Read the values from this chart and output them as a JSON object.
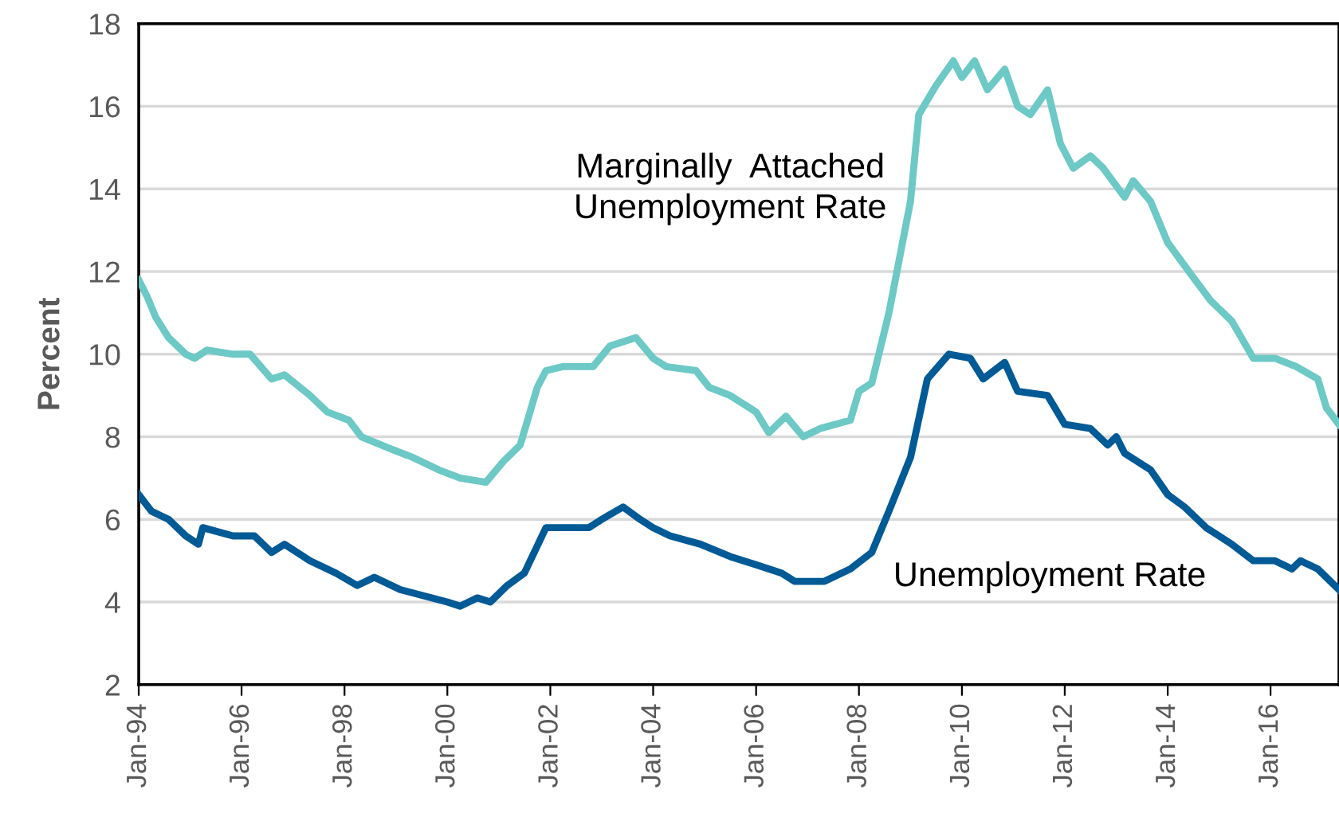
{
  "chart_data": {
    "type": "line",
    "ylabel": "Percent",
    "xlim": [
      "1994-01",
      "2017-05"
    ],
    "ylim": [
      2,
      18
    ],
    "yticks": [
      2,
      4,
      6,
      8,
      10,
      12,
      14,
      16,
      18
    ],
    "xticks": [
      {
        "value": "1994-01",
        "label": "Jan-94"
      },
      {
        "value": "1996-01",
        "label": "Jan-96"
      },
      {
        "value": "1998-01",
        "label": "Jan-98"
      },
      {
        "value": "2000-01",
        "label": "Jan-00"
      },
      {
        "value": "2002-01",
        "label": "Jan-02"
      },
      {
        "value": "2004-01",
        "label": "Jan-04"
      },
      {
        "value": "2006-01",
        "label": "Jan-06"
      },
      {
        "value": "2008-01",
        "label": "Jan-08"
      },
      {
        "value": "2010-01",
        "label": "Jan-10"
      },
      {
        "value": "2012-01",
        "label": "Jan-12"
      },
      {
        "value": "2014-01",
        "label": "Jan-14"
      },
      {
        "value": "2016-01",
        "label": "Jan-16"
      }
    ],
    "grid": "y",
    "legend": false,
    "line_style": "solid",
    "marker": "none",
    "series": [
      {
        "name": "Marginally  Attached\nUnemployment Rate",
        "color": "#6cc9c5",
        "x": [
          "1994-01",
          "1994-03",
          "1994-05",
          "1994-08",
          "1994-12",
          "1995-02",
          "1995-05",
          "1995-11",
          "1996-03",
          "1996-08",
          "1996-11",
          "1997-05",
          "1997-09",
          "1998-02",
          "1998-05",
          "1998-12",
          "1999-05",
          "1999-11",
          "2000-04",
          "2000-10",
          "2001-02",
          "2001-06",
          "2001-10",
          "2001-12",
          "2002-04",
          "2002-11",
          "2003-03",
          "2003-09",
          "2004-01",
          "2004-04",
          "2004-11",
          "2005-02",
          "2005-07",
          "2006-01",
          "2006-04",
          "2006-08",
          "2006-12",
          "2007-04",
          "2007-11",
          "2008-01",
          "2008-04",
          "2008-08",
          "2009-01",
          "2009-03",
          "2009-07",
          "2009-11",
          "2010-01",
          "2010-04",
          "2010-07",
          "2010-11",
          "2011-02",
          "2011-05",
          "2011-09",
          "2011-12",
          "2012-03",
          "2012-07",
          "2012-10",
          "2013-03",
          "2013-05",
          "2013-09",
          "2014-01",
          "2014-06",
          "2014-11",
          "2015-04",
          "2015-09",
          "2016-02",
          "2016-07",
          "2016-12",
          "2017-02",
          "2017-05"
        ],
        "values": [
          11.8,
          11.4,
          10.9,
          10.4,
          10.0,
          9.9,
          10.1,
          10.0,
          10.0,
          9.4,
          9.5,
          9.0,
          8.6,
          8.4,
          8.0,
          7.7,
          7.5,
          7.2,
          7.0,
          6.9,
          7.4,
          7.8,
          9.2,
          9.6,
          9.7,
          9.7,
          10.2,
          10.4,
          9.9,
          9.7,
          9.6,
          9.2,
          9.0,
          8.6,
          8.1,
          8.5,
          8.0,
          8.2,
          8.4,
          9.1,
          9.3,
          11.0,
          13.7,
          15.8,
          16.5,
          17.1,
          16.7,
          17.1,
          16.4,
          16.9,
          16.0,
          15.8,
          16.4,
          15.1,
          14.5,
          14.8,
          14.5,
          13.8,
          14.2,
          13.7,
          12.7,
          12.0,
          11.3,
          10.8,
          9.9,
          9.9,
          9.7,
          9.4,
          8.7,
          8.3
        ]
      },
      {
        "name": "Unemployment Rate",
        "color": "#005a96",
        "x": [
          "1994-01",
          "1994-04",
          "1994-08",
          "1994-12",
          "1995-03",
          "1995-04",
          "1995-11",
          "1996-04",
          "1996-08",
          "1996-11",
          "1997-05",
          "1997-11",
          "1998-04",
          "1998-08",
          "1999-02",
          "2000-01",
          "2000-04",
          "2000-08",
          "2000-11",
          "2001-03",
          "2001-07",
          "2001-12",
          "2002-04",
          "2002-10",
          "2003-01",
          "2003-06",
          "2003-10",
          "2004-01",
          "2004-05",
          "2004-12",
          "2005-07",
          "2006-01",
          "2006-07",
          "2006-10",
          "2007-05",
          "2007-11",
          "2008-04",
          "2008-08",
          "2009-01",
          "2009-05",
          "2009-10",
          "2010-03",
          "2010-06",
          "2010-11",
          "2011-02",
          "2011-09",
          "2012-01",
          "2012-07",
          "2012-11",
          "2013-01",
          "2013-03",
          "2013-09",
          "2014-01",
          "2014-05",
          "2014-10",
          "2015-04",
          "2015-09",
          "2016-02",
          "2016-06",
          "2016-08",
          "2016-12",
          "2017-05"
        ],
        "values": [
          6.6,
          6.2,
          6.0,
          5.6,
          5.4,
          5.8,
          5.6,
          5.6,
          5.2,
          5.4,
          5.0,
          4.7,
          4.4,
          4.6,
          4.3,
          4.0,
          3.9,
          4.1,
          4.0,
          4.4,
          4.7,
          5.8,
          5.8,
          5.8,
          6.0,
          6.3,
          6.0,
          5.8,
          5.6,
          5.4,
          5.1,
          4.9,
          4.7,
          4.5,
          4.5,
          4.8,
          5.2,
          6.2,
          7.5,
          9.4,
          10.0,
          9.9,
          9.4,
          9.8,
          9.1,
          9.0,
          8.3,
          8.2,
          7.8,
          8.0,
          7.6,
          7.2,
          6.6,
          6.3,
          5.8,
          5.4,
          5.0,
          5.0,
          4.8,
          5.0,
          4.8,
          4.3
        ]
      }
    ]
  }
}
